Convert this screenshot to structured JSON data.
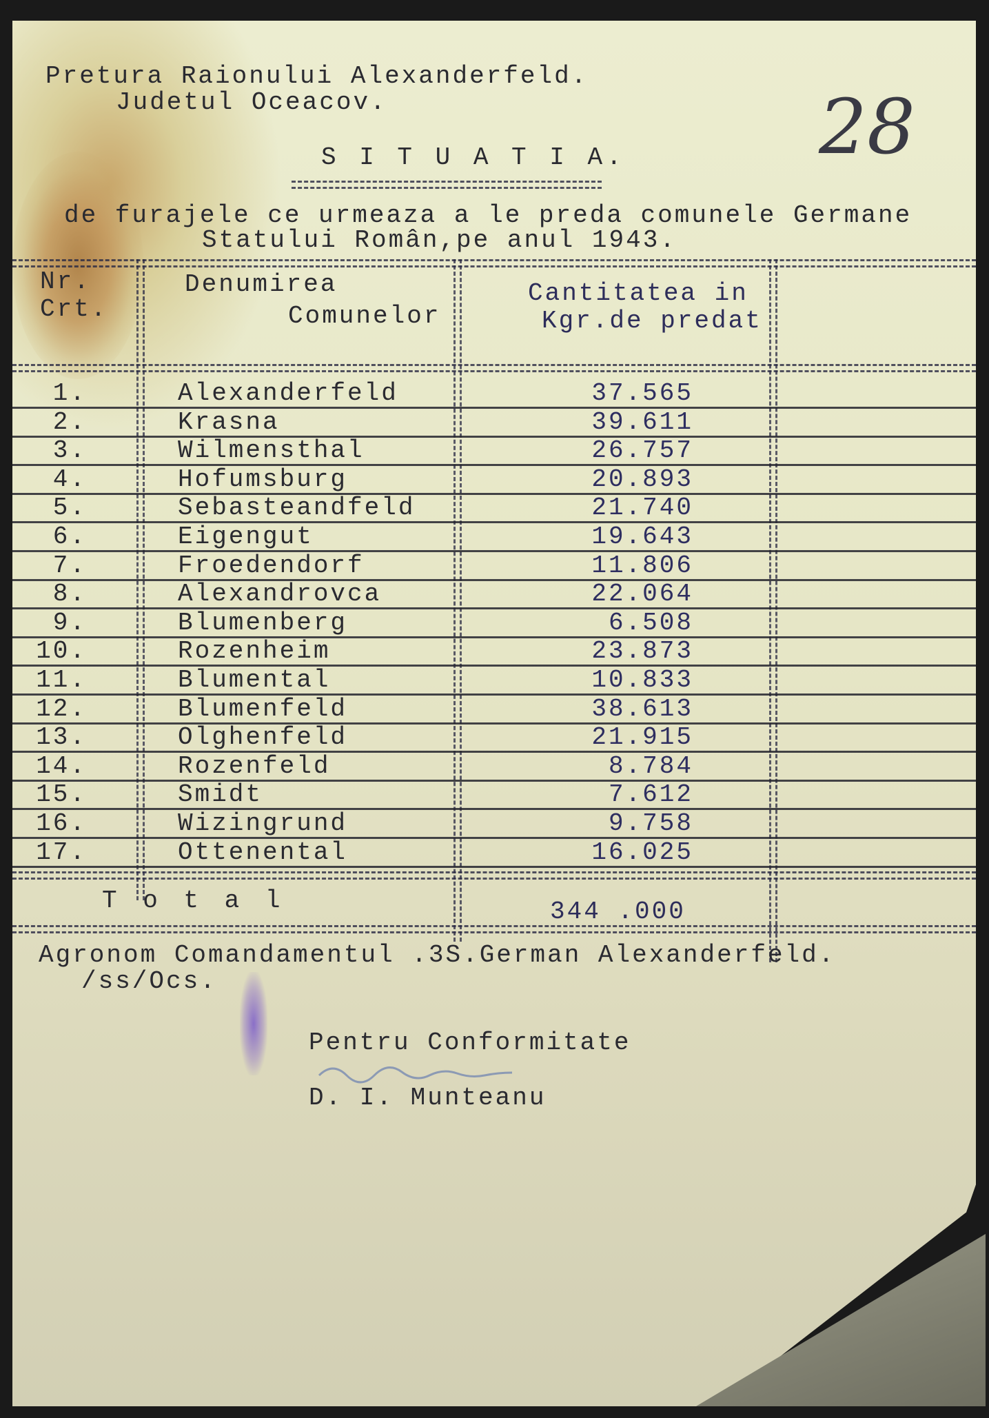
{
  "header": {
    "line1": "Pretura Raionului Alexanderfeld.",
    "line2": "Judetul Oceacov.",
    "page_number": "28"
  },
  "title": "S I T U A T I A.",
  "subtitle": {
    "line1": "de furajele ce urmeaza a le preda comunele Germane",
    "line2": "Statului Român,pe anul 1943."
  },
  "table": {
    "headers": {
      "no": [
        "Nr.",
        "Crt."
      ],
      "name": [
        "Denumirea",
        "Comunelor"
      ],
      "qty": [
        "Cantitatea in",
        "Kgr.de predat"
      ]
    },
    "rows": [
      {
        "no": "1.",
        "name": "Alexanderfeld",
        "qty": "37.565"
      },
      {
        "no": "2.",
        "name": "Krasna",
        "qty": "39.611"
      },
      {
        "no": "3.",
        "name": "Wilmensthal",
        "qty": "26.757"
      },
      {
        "no": "4.",
        "name": "Hofumsburg",
        "qty": "20.893"
      },
      {
        "no": "5.",
        "name": "Sebasteandfeld",
        "qty": "21.740"
      },
      {
        "no": "6.",
        "name": "Eigengut",
        "qty": "19.643"
      },
      {
        "no": "7.",
        "name": "Froedendorf",
        "qty": "11.806"
      },
      {
        "no": "8.",
        "name": "Alexandrovca",
        "qty": "22.064"
      },
      {
        "no": "9.",
        "name": "Blumenberg",
        "qty": "6.508"
      },
      {
        "no": "10.",
        "name": "Rozenheim",
        "qty": "23.873"
      },
      {
        "no": "11.",
        "name": "Blumental",
        "qty": "10.833"
      },
      {
        "no": "12.",
        "name": "Blumenfeld",
        "qty": "38.613"
      },
      {
        "no": "13.",
        "name": "Olghenfeld",
        "qty": "21.915"
      },
      {
        "no": "14.",
        "name": "Rozenfeld",
        "qty": "8.784"
      },
      {
        "no": "15.",
        "name": "Smidt",
        "qty": "7.612"
      },
      {
        "no": "16.",
        "name": "Wizingrund",
        "qty": "9.758"
      },
      {
        "no": "17.",
        "name": "Ottenental",
        "qty": "16.025"
      }
    ],
    "total_label": "T o t a l",
    "total_value": "344 .000"
  },
  "footer": {
    "line1": "Agronom Comandamentul .3S.German Alexanderfeld.",
    "line2": "/ss/Ocs.",
    "conformity": "Pentru Conformitate",
    "signatory": "D. I. Munteanu"
  }
}
